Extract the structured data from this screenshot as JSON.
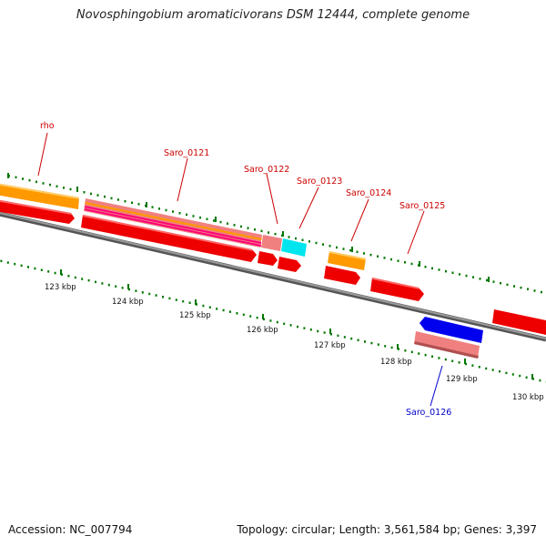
{
  "title": "Novosphingobium aromaticivorans DSM 12444, complete genome",
  "footer": {
    "accession": "Accession: NC_007794",
    "stats": "Topology: circular; Length: 3,561,584 bp; Genes: 3,397"
  },
  "ruler": {
    "labels": [
      "123 kbp",
      "124 kbp",
      "125 kbp",
      "126 kbp",
      "127 kbp",
      "128 kbp",
      "129 kbp",
      "130 kbp"
    ]
  },
  "gene_labels": [
    {
      "name": "rho",
      "color": "#cc0000"
    },
    {
      "name": "Saro_0121",
      "color": "#cc0000"
    },
    {
      "name": "Saro_0122",
      "color": "#cc0000"
    },
    {
      "name": "Saro_0123",
      "color": "#cc0000"
    },
    {
      "name": "Saro_0124",
      "color": "#cc0000"
    },
    {
      "name": "Saro_0125",
      "color": "#cc0000"
    },
    {
      "name": "Saro_0126",
      "color": "#0000cc"
    }
  ],
  "colors": {
    "backbone": "#7a7a7a",
    "cds_forward": "#ee0000",
    "cds_reverse": "#0000ee",
    "gene_orange": "#ff9900",
    "pseudo_pink": "#f08080",
    "magenta": "#ff0077",
    "cyan": "#00e5ee",
    "tick": "#007700"
  }
}
